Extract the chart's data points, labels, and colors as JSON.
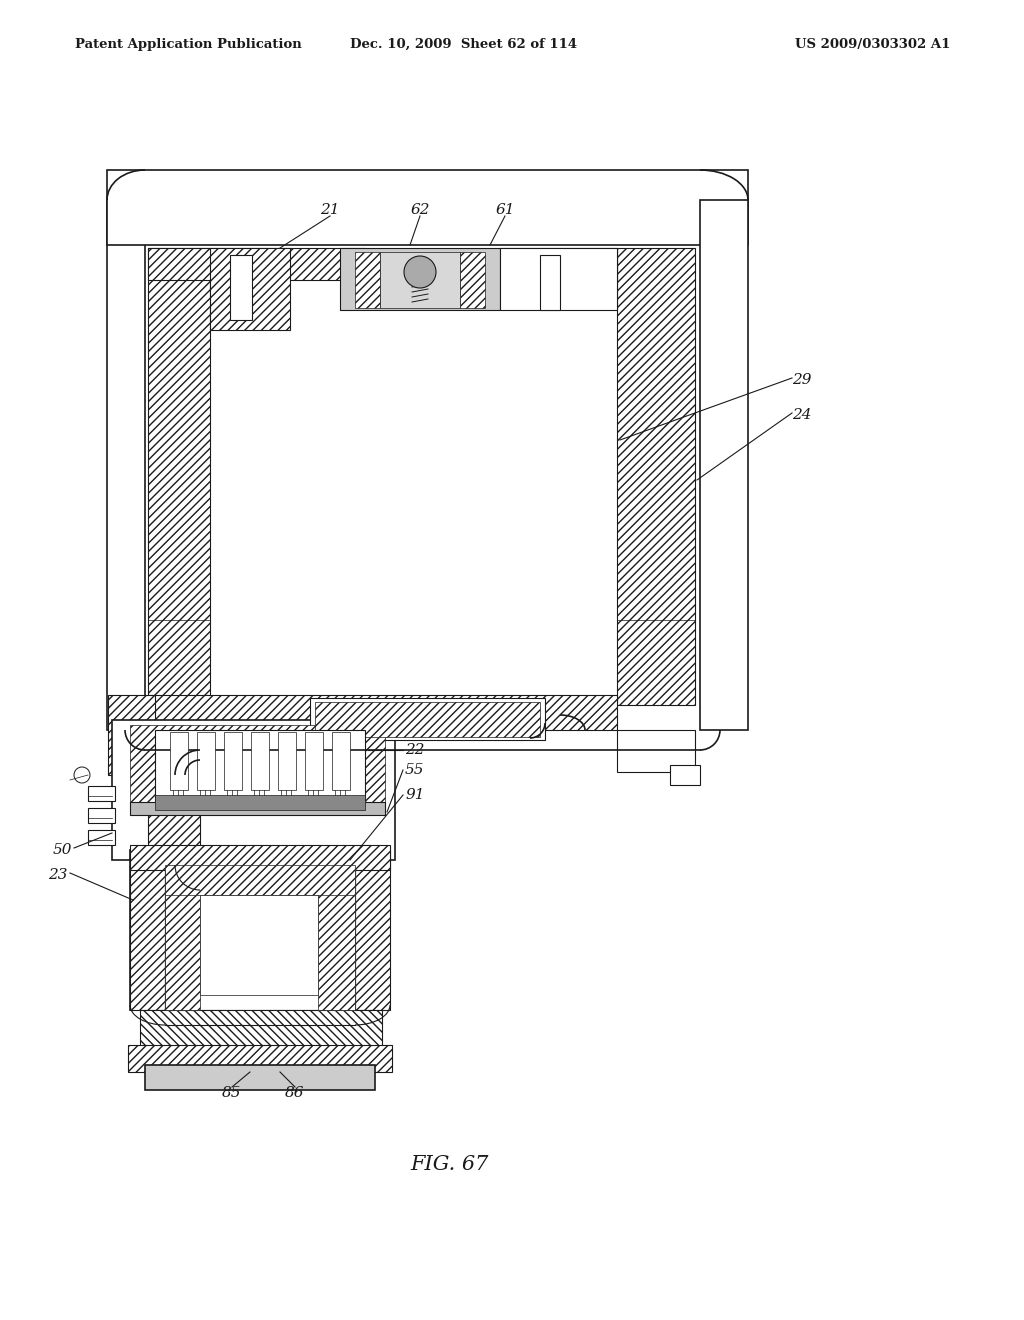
{
  "bg_color": "#ffffff",
  "lc": "#1a1a1a",
  "header_left": "Patent Application Publication",
  "header_center": "Dec. 10, 2009  Sheet 62 of 114",
  "header_right": "US 2009/0303302 A1",
  "fig_label": "FIG. 67",
  "label_fontsize": 11,
  "header_fontsize": 9.5
}
